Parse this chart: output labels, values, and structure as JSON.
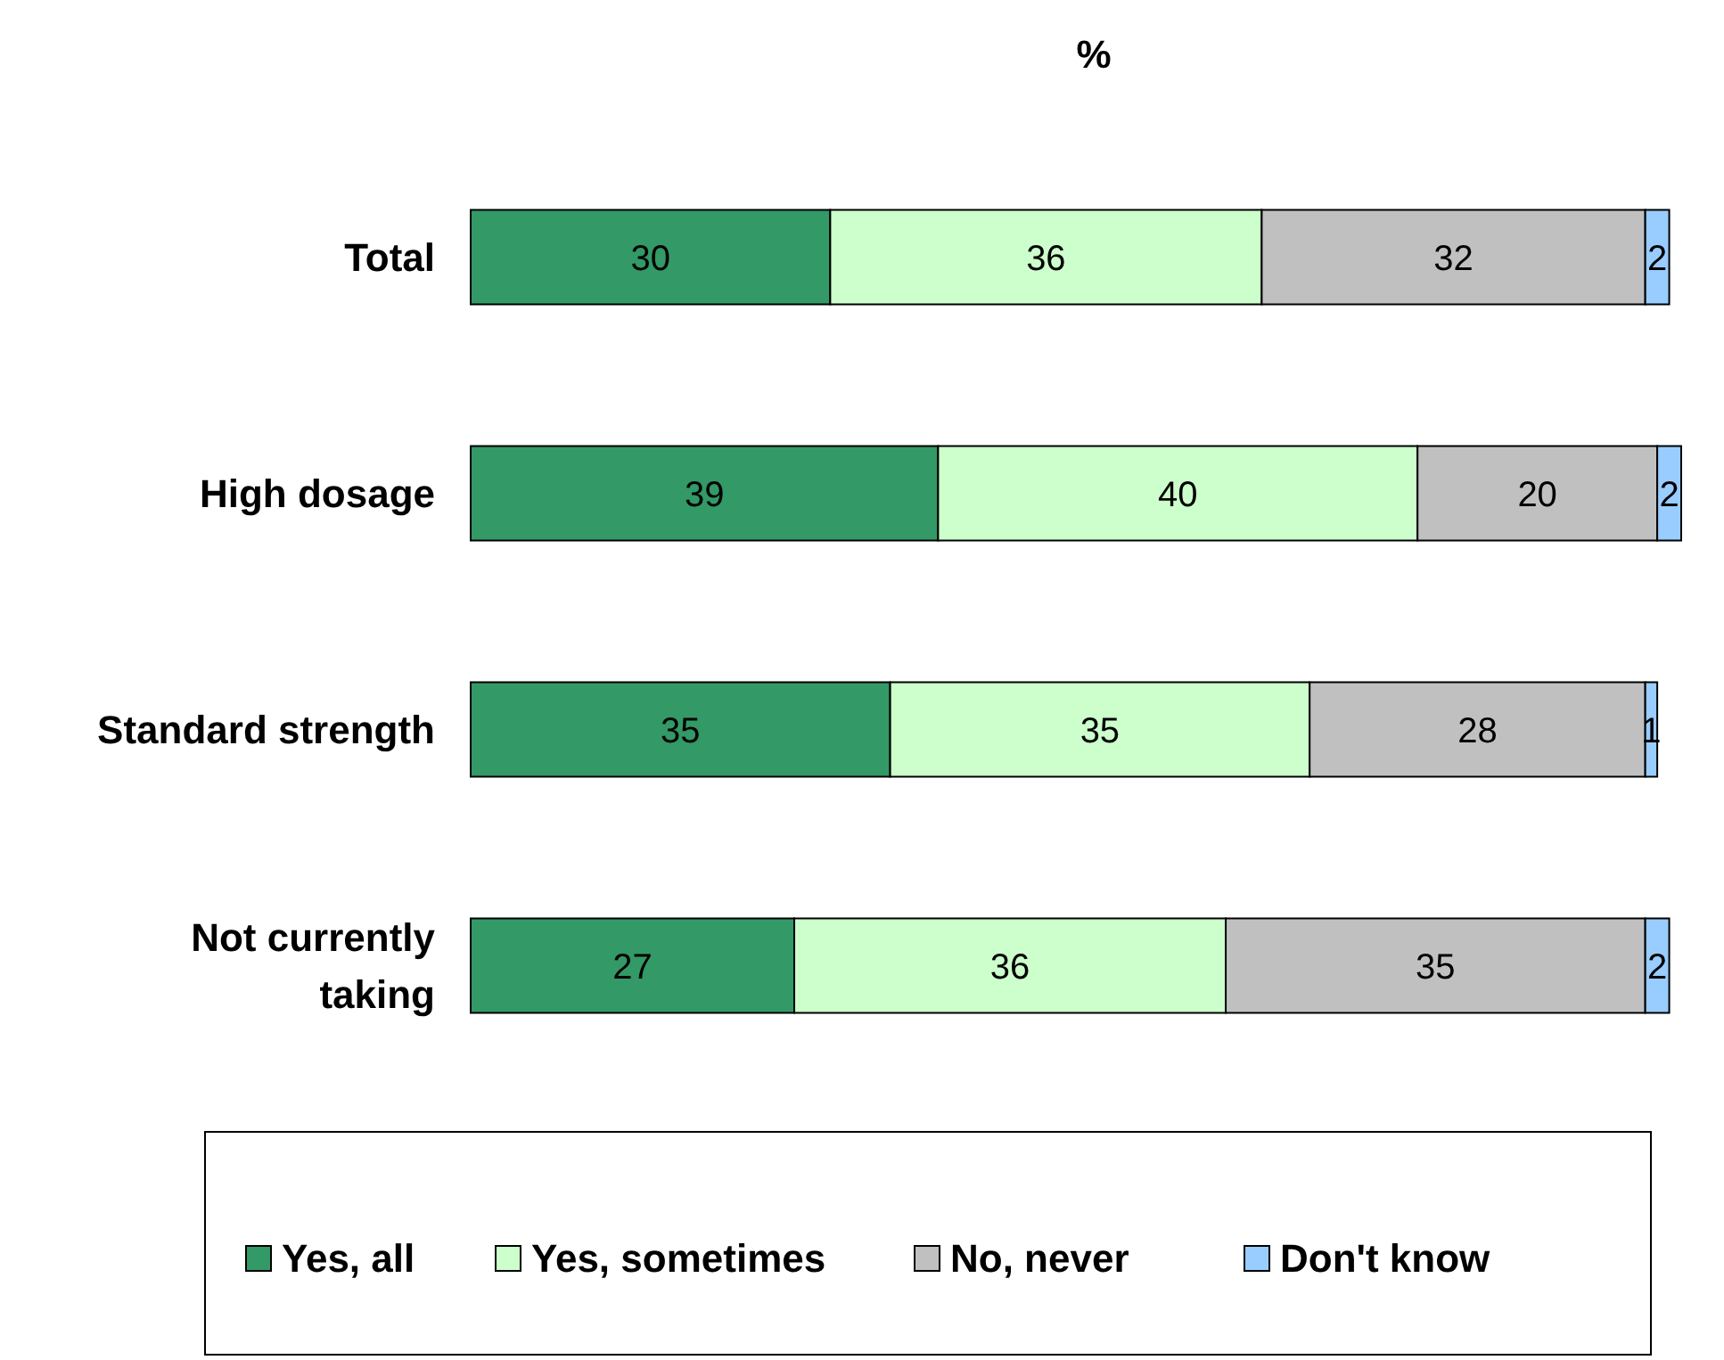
{
  "chart_data": {
    "type": "bar",
    "orientation": "horizontal",
    "stacked": true,
    "title": "%",
    "categories": [
      "Total",
      "High dosage",
      "Standard strength",
      "Not currently taking"
    ],
    "series": [
      {
        "name": "Yes, all",
        "color": "#339966",
        "values": [
          30,
          39,
          35,
          27
        ]
      },
      {
        "name": "Yes, sometimes",
        "color": "#ccffcc",
        "values": [
          36,
          40,
          35,
          36
        ]
      },
      {
        "name": "No, never",
        "color": "#c0c0c0",
        "values": [
          32,
          20,
          28,
          35
        ]
      },
      {
        "name": "Don't know",
        "color": "#99ccff",
        "values": [
          2,
          2,
          1,
          2
        ]
      }
    ],
    "data_labels": true,
    "legend": "bottom",
    "grid": false
  }
}
